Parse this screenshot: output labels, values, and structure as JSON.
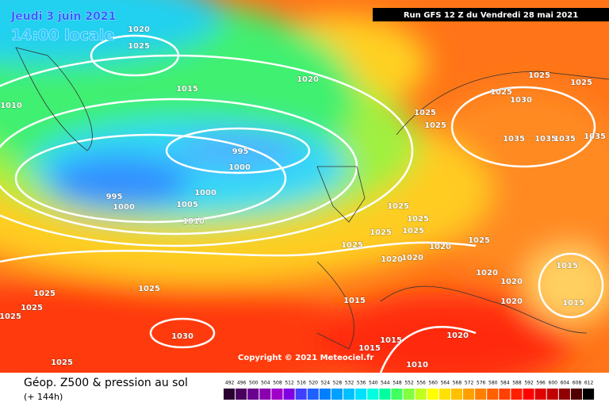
{
  "header": {
    "date": "Jeudi 3 juin 2021",
    "time": "14:00 locale",
    "run": "Run GFS 12 Z du Vendredi 28 mai 2021"
  },
  "copyright": "Copyright © 2021 Meteociel.fr",
  "footer": {
    "title": "Géop. Z500 & pression au sol",
    "subtitle": "(+ 144h)"
  },
  "scale": {
    "values": [
      492,
      496,
      500,
      504,
      508,
      512,
      516,
      520,
      524,
      528,
      532,
      536,
      540,
      544,
      548,
      552,
      556,
      560,
      564,
      568,
      572,
      576,
      580,
      584,
      588,
      592,
      596,
      600,
      604,
      608,
      612
    ],
    "colors": [
      "#2a0030",
      "#4b0060",
      "#6a0090",
      "#8a00b0",
      "#a000c8",
      "#8000e0",
      "#4040ff",
      "#2060ff",
      "#0080ff",
      "#00a0ff",
      "#00c0ff",
      "#00e0ff",
      "#00ffe0",
      "#00ffa0",
      "#40ff60",
      "#80ff40",
      "#c0ff20",
      "#ffff00",
      "#ffe000",
      "#ffc000",
      "#ffa000",
      "#ff8000",
      "#ff6000",
      "#ff4000",
      "#ff2000",
      "#ff0000",
      "#e00000",
      "#c00000",
      "#900000",
      "#500000",
      "#000000"
    ]
  },
  "isobar_labels": [
    1020,
    1025,
    1015,
    1010,
    1020,
    995,
    1000,
    995,
    1000,
    1000,
    1005,
    1010,
    1025,
    1025,
    1025,
    1030,
    1025,
    1025,
    1035,
    1035,
    1035,
    1035,
    1025,
    1025,
    1025,
    1025,
    1025,
    1025,
    1020,
    1020,
    1020,
    1020,
    1020,
    1020,
    1015,
    1015,
    1015,
    1015,
    1015,
    1020,
    1010,
    1025,
    1025,
    1025,
    1025,
    1030,
    1025
  ]
}
